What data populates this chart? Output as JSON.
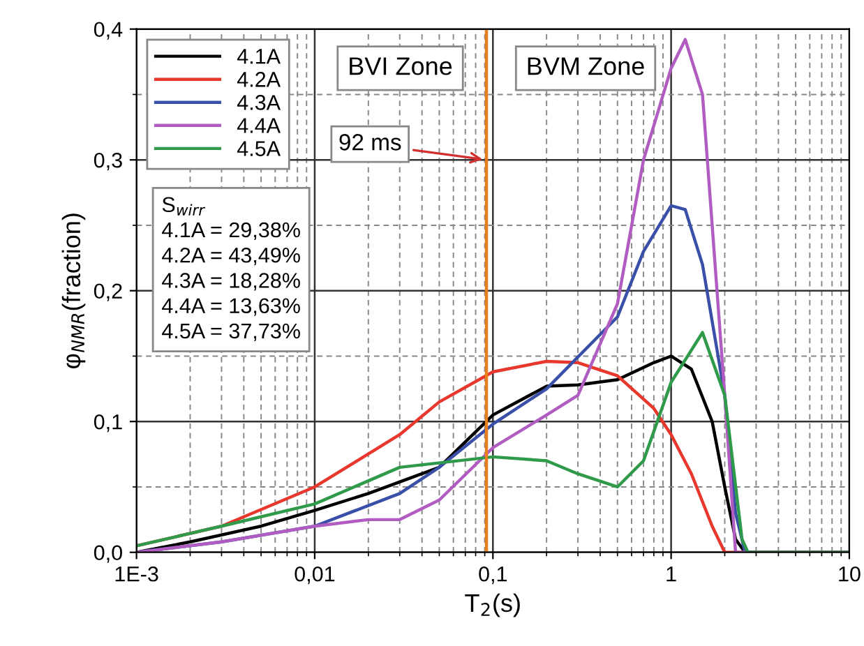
{
  "chart_data": {
    "type": "line",
    "xlabel": "T$_{2}$(s)",
    "ylabel": "φ$_{NMR}$(fraction)",
    "log": "x",
    "xlim": [
      0.001,
      10
    ],
    "ylim": [
      0,
      0.4
    ],
    "xticks": [
      {
        "value": 0.001,
        "label": "1E-3"
      },
      {
        "value": 0.01,
        "label": "0,01"
      },
      {
        "value": 0.1,
        "label": "0,1"
      },
      1,
      10
    ],
    "yticks": [
      {
        "value": 0,
        "label": "0,0"
      },
      {
        "value": 0.1,
        "label": "0,1"
      },
      {
        "value": 0.2,
        "label": "0,2"
      },
      {
        "value": 0.3,
        "label": "0,3"
      },
      {
        "value": 0.4,
        "label": "0,4"
      }
    ],
    "grid": true,
    "legend": "top left",
    "marker": "none",
    "line_style": "solid",
    "series": [
      {
        "name": "4.1A",
        "color": "#000000",
        "x": [
          0.001,
          0.002,
          0.005,
          0.01,
          0.02,
          0.05,
          0.1,
          0.2,
          0.3,
          0.5,
          0.8,
          1,
          1.3,
          1.7,
          2,
          2.3,
          2.6,
          10
        ],
        "values": [
          0.0,
          0.008,
          0.02,
          0.032,
          0.045,
          0.065,
          0.105,
          0.127,
          0.128,
          0.132,
          0.145,
          0.15,
          0.14,
          0.1,
          0.05,
          0.01,
          0.0,
          0.0
        ]
      },
      {
        "name": "4.2A",
        "color": "#e8372c",
        "x": [
          0.001,
          0.003,
          0.01,
          0.03,
          0.05,
          0.1,
          0.2,
          0.3,
          0.5,
          0.8,
          1,
          1.3,
          1.7,
          2,
          10
        ],
        "values": [
          0.005,
          0.02,
          0.05,
          0.09,
          0.115,
          0.138,
          0.146,
          0.145,
          0.135,
          0.11,
          0.09,
          0.06,
          0.02,
          0.0,
          0.0
        ]
      },
      {
        "name": "4.3A",
        "color": "#3a4fa8",
        "x": [
          0.001,
          0.003,
          0.01,
          0.03,
          0.05,
          0.1,
          0.2,
          0.5,
          0.7,
          1,
          1.2,
          1.5,
          2,
          2.3,
          2.6,
          10
        ],
        "values": [
          0.0,
          0.008,
          0.02,
          0.045,
          0.065,
          0.098,
          0.125,
          0.18,
          0.23,
          0.265,
          0.262,
          0.22,
          0.12,
          0.03,
          0.0,
          0.0
        ]
      },
      {
        "name": "4.4A",
        "color": "#b05cc0",
        "x": [
          0.001,
          0.003,
          0.01,
          0.02,
          0.03,
          0.05,
          0.1,
          0.2,
          0.3,
          0.5,
          0.7,
          1,
          1.2,
          1.5,
          2,
          2.3,
          10
        ],
        "values": [
          0.0,
          0.008,
          0.02,
          0.025,
          0.025,
          0.04,
          0.08,
          0.105,
          0.12,
          0.19,
          0.3,
          0.37,
          0.392,
          0.35,
          0.12,
          0.0,
          0.0
        ]
      },
      {
        "name": "4.5A",
        "color": "#2e9a4a",
        "x": [
          0.001,
          0.003,
          0.01,
          0.03,
          0.1,
          0.2,
          0.3,
          0.5,
          0.7,
          1,
          1.5,
          2,
          2.5,
          2.7,
          10
        ],
        "values": [
          0.005,
          0.02,
          0.037,
          0.065,
          0.073,
          0.07,
          0.06,
          0.05,
          0.07,
          0.13,
          0.168,
          0.12,
          0.01,
          0.0,
          0.0
        ]
      }
    ],
    "ref_lines": [
      {
        "axis": "x",
        "value": 0.092,
        "label": "92 ms",
        "color": "#e87e1e"
      }
    ],
    "annotations": [
      "BVI Zone",
      "BVM Zone",
      "S$_{wirr}$\n4.1A = 29,38%\n4.2A = 43,49%\n4.3A = 18,28%\n4.4A = 13,63%\n4.5A = 37,73%"
    ]
  }
}
